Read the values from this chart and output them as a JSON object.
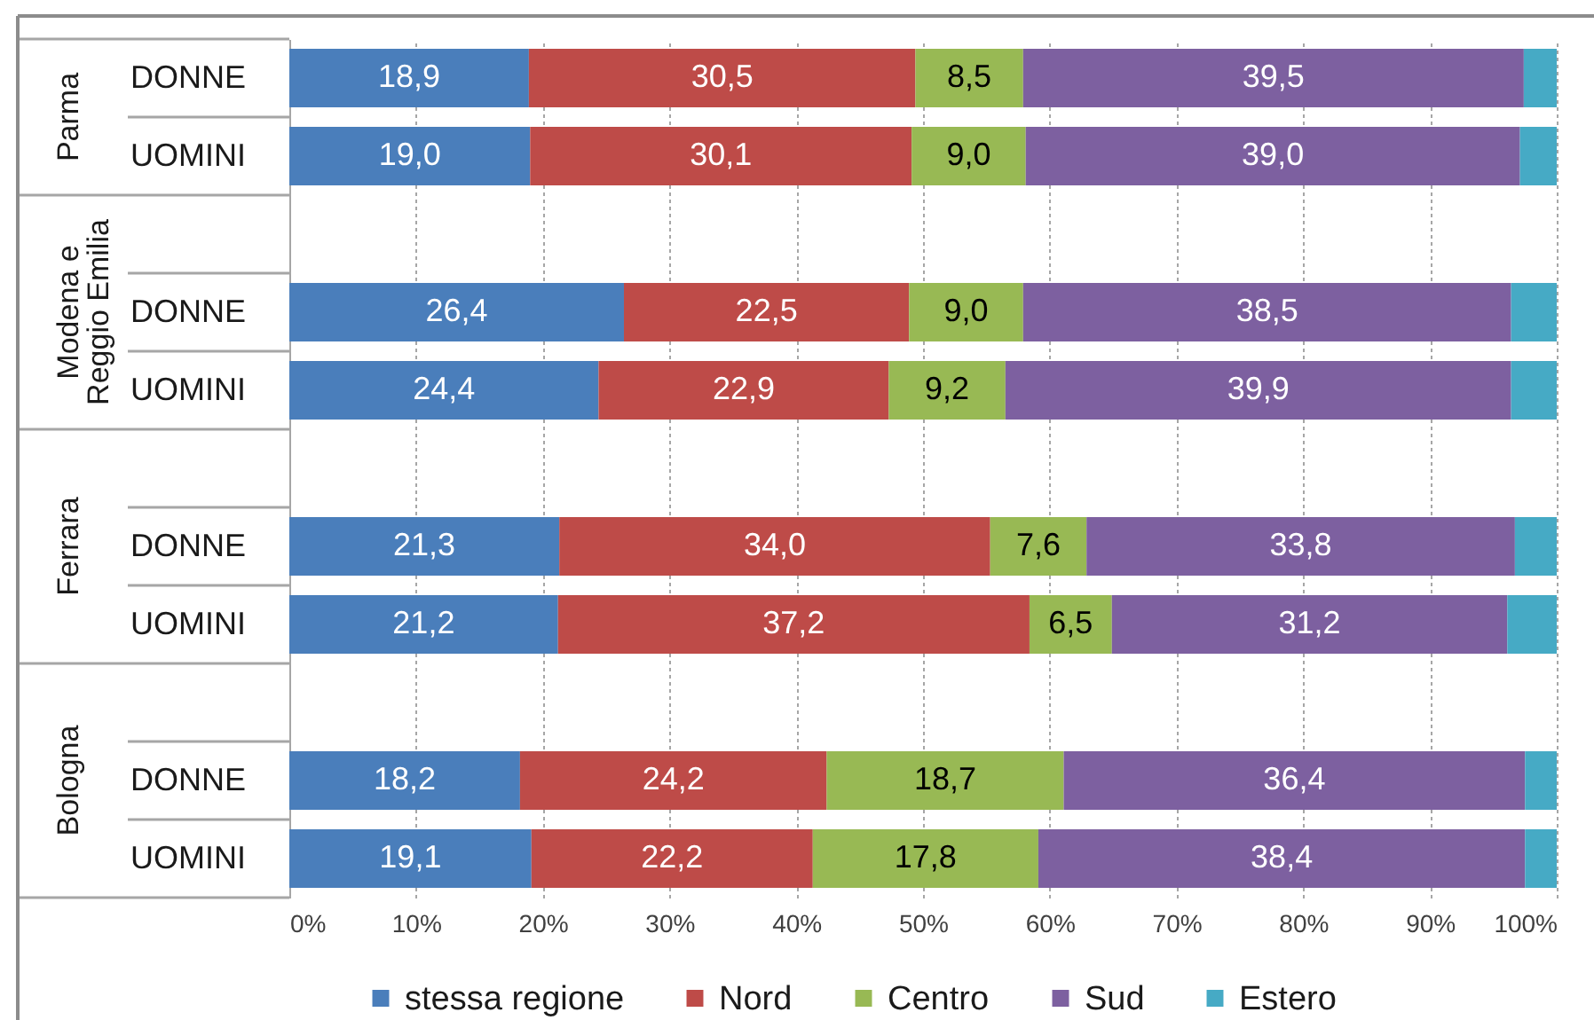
{
  "chart_data": {
    "type": "bar",
    "orientation": "horizontal",
    "stacked": true,
    "categories": [
      "DONNE",
      "UOMINI",
      null,
      "DONNE",
      "UOMINI",
      null,
      "DONNE",
      "UOMINI",
      null,
      "DONNE",
      "UOMINI"
    ],
    "series": [
      {
        "name": "stessa regione",
        "color": "#4a7ebb",
        "values": [
          18.9,
          19.0,
          null,
          26.4,
          24.4,
          null,
          21.3,
          21.2,
          null,
          18.2,
          19.1
        ],
        "value_labels": [
          "18,9",
          "19,0",
          null,
          "26,4",
          "24,4",
          null,
          "21,3",
          "21,2",
          null,
          "18,2",
          "19,1"
        ]
      },
      {
        "name": "Nord",
        "color": "#be4b48",
        "values": [
          30.5,
          30.1,
          null,
          22.5,
          22.9,
          null,
          34.0,
          37.2,
          null,
          24.2,
          22.2
        ],
        "value_labels": [
          "30,5",
          "30,1",
          null,
          "22,5",
          "22,9",
          null,
          "34,0",
          "37,2",
          null,
          "24,2",
          "22,2"
        ]
      },
      {
        "name": "Centro",
        "color": "#98b954",
        "values": [
          8.5,
          9.0,
          null,
          9.0,
          9.2,
          null,
          7.6,
          6.5,
          null,
          18.7,
          17.8
        ],
        "value_labels": [
          "8,5",
          "9,0",
          null,
          "9,0",
          "9,2",
          null,
          "7,6",
          "6,5",
          null,
          "18,7",
          "17,8"
        ]
      },
      {
        "name": "Sud",
        "color": "#7d60a0",
        "values": [
          39.5,
          39.0,
          null,
          38.5,
          39.9,
          null,
          33.8,
          31.2,
          null,
          36.4,
          38.4
        ],
        "value_labels": [
          "39,5",
          "39,0",
          null,
          "38,5",
          "39,9",
          null,
          "33,8",
          "31,2",
          null,
          "36,4",
          "38,4"
        ]
      },
      {
        "name": "Estero",
        "color": "#46aac5",
        "values": [
          2.6,
          2.9,
          null,
          3.6,
          3.6,
          null,
          3.3,
          3.9,
          null,
          2.5,
          2.5
        ]
      }
    ],
    "xlim": [
      0,
      100
    ],
    "xticks": [
      {
        "value": 0,
        "label": "0%"
      },
      {
        "value": 10,
        "label": "10%"
      },
      {
        "value": 20,
        "label": "20%"
      },
      {
        "value": 30,
        "label": "30%"
      },
      {
        "value": 40,
        "label": "40%"
      },
      {
        "value": 50,
        "label": "50%"
      },
      {
        "value": 60,
        "label": "60%"
      },
      {
        "value": 70,
        "label": "70%"
      },
      {
        "value": 80,
        "label": "80%"
      },
      {
        "value": 90,
        "label": "90%"
      },
      {
        "value": 100,
        "label": "100%"
      }
    ],
    "annotations": [
      "Parma",
      "Modena e Reggio Emilia",
      "Ferrara",
      "Bologna"
    ],
    "grid": "x",
    "legend": "bottom"
  }
}
